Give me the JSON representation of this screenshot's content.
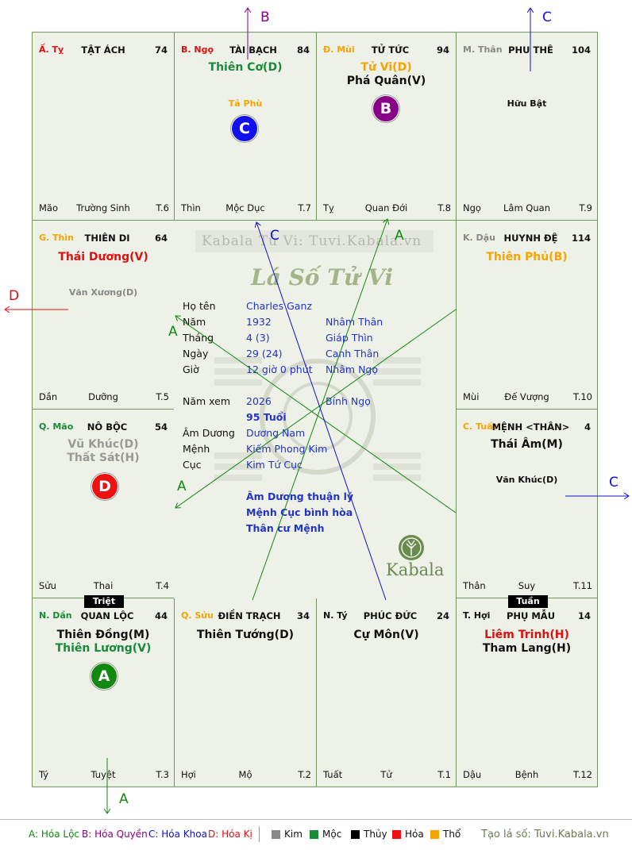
{
  "watermark": {
    "site": "Kabala Tử Vi: Tuvi.Kabala.vn",
    "script_title": "Lá Số Tử Vi",
    "brand": "Kabala"
  },
  "cells": {
    "ty_snake": {
      "name": "Ấ. Tỵ",
      "title": "TẬT ÁCH",
      "num": "74",
      "foot_l": "Mão",
      "foot_c": "Trường Sinh",
      "foot_r": "T.6"
    },
    "ngo": {
      "name": "B. Ngọ",
      "title": "TÀI BẠCH",
      "num": "84",
      "main1": "Thiên Cơ(D)",
      "minor1": "Tả Phù",
      "foot_l": "Thìn",
      "foot_c": "Mộc Dục",
      "foot_r": "T.7"
    },
    "mui": {
      "name": "Đ. Mùi",
      "title": "TỬ TỨC",
      "num": "94",
      "main1": "Tử Vi(D)",
      "main2": "Phá Quân(V)",
      "foot_l": "Tỵ",
      "foot_c": "Quan Đới",
      "foot_r": "T.8"
    },
    "than": {
      "name": "M. Thân",
      "title": "PHU THÊ",
      "num": "104",
      "minor1": "Hữu Bật",
      "foot_l": "Ngọ",
      "foot_c": "Lâm Quan",
      "foot_r": "T.9"
    },
    "thin": {
      "name": "G. Thìn",
      "title": "THIÊN DI",
      "num": "64",
      "main1": "Thái Dương(V)",
      "minor1": "Văn Xương(D)",
      "foot_l": "Dần",
      "foot_c": "Dưỡng",
      "foot_r": "T.5"
    },
    "dau": {
      "name": "K. Dậu",
      "title": "HUYNH ĐỆ",
      "num": "114",
      "main1": "Thiên Phủ(B)",
      "foot_l": "Mùi",
      "foot_c": "Đế Vượng",
      "foot_r": "T.10"
    },
    "mao": {
      "name": "Q. Mão",
      "title": "NÔ BỘC",
      "num": "54",
      "main1": "Vũ Khúc(D)",
      "main2": "Thất Sát(H)",
      "foot_l": "Sửu",
      "foot_c": "Thai",
      "foot_r": "T.4"
    },
    "tuat": {
      "name": "C. Tuất",
      "title": "MỆNH <THÂN>",
      "num": "4",
      "main1": "Thái Âm(M)",
      "minor1": "Văn Khúc(D)",
      "foot_l": "Thân",
      "foot_c": "Suy",
      "foot_r": "T.11"
    },
    "dan": {
      "name": "N. Dần",
      "title": "QUAN LỘC",
      "num": "44",
      "main1": "Thiên Đồng(M)",
      "main2": "Thiên Lương(V)",
      "foot_l": "Tý",
      "foot_c": "Tuyệt",
      "foot_r": "T.3"
    },
    "suu": {
      "name": "Q. Sửu",
      "title": "ĐIỀN TRẠCH",
      "num": "34",
      "main1": "Thiên Tướng(D)",
      "foot_l": "Hợi",
      "foot_c": "Mộ",
      "foot_r": "T.2"
    },
    "ty_rat": {
      "name": "N. Tý",
      "title": "PHÚC ĐỨC",
      "num": "24",
      "main1": "Cự Môn(V)",
      "foot_l": "Tuất",
      "foot_c": "Tử",
      "foot_r": "T.1"
    },
    "hoi": {
      "name": "T. Hợi",
      "title": "PHỤ MẪU",
      "num": "14",
      "main1": "Liêm Trinh(H)",
      "main2": "Tham Lang(H)",
      "foot_l": "Dậu",
      "foot_c": "Bệnh",
      "foot_r": "T.12"
    }
  },
  "tags": {
    "triet": "Triệt",
    "tuan": "Tuần"
  },
  "badges": {
    "a": "A",
    "b": "B",
    "c": "C",
    "d": "D"
  },
  "arrow_labels": {
    "a": "A",
    "b": "B",
    "c": "C",
    "d": "D"
  },
  "info": {
    "ho_ten_label": "Họ tên",
    "ho_ten": "Charles Ganz",
    "nam_label": "Năm",
    "nam": "1932",
    "nam_can": "Nhâm Thân",
    "thang_label": "Tháng",
    "thang": "4  (3)",
    "thang_can": "Giáp Thìn",
    "ngay_label": "Ngày",
    "ngay": "29  (24)",
    "ngay_can": "Canh Thân",
    "gio_label": "Giờ",
    "gio": "12 giờ 0 phút",
    "gio_can": "Nhâm Ngọ",
    "nam_xem_label": "Năm xem",
    "nam_xem": "2026",
    "nam_xem_can": "Bính Ngọ",
    "tuoi": "95 Tuổi",
    "am_duong_label": "Âm Dương",
    "am_duong": "Dương Nam",
    "menh_label": "Mệnh",
    "menh": "Kiếm Phong Kim",
    "cuc_label": "Cục",
    "cuc": "Kim Tứ Cục",
    "note1": "Âm Dương thuận lý",
    "note2": "Mệnh Cục bình hòa",
    "note3": "Thân cư Mệnh"
  },
  "legend": {
    "a": "A: Hóa Lộc",
    "b": "B: Hóa Quyền",
    "c": "C: Hóa Khoa",
    "d": "D: Hóa Kị",
    "kim": "Kim",
    "moc": "Mộc",
    "thuy": "Thủy",
    "hoa": "Hỏa",
    "tho": "Thổ",
    "site": "Tạo lá số: Tuvi.Kabala.vn"
  },
  "colors": {
    "loc": "#118811",
    "quyen": "#880088",
    "khoa": "#1111cc",
    "ki": "#dd1111",
    "kim": "#888888",
    "moc": "#1a8a3a",
    "thuy": "#000000",
    "hoa": "#ee1111",
    "tho": "#f5a300"
  }
}
